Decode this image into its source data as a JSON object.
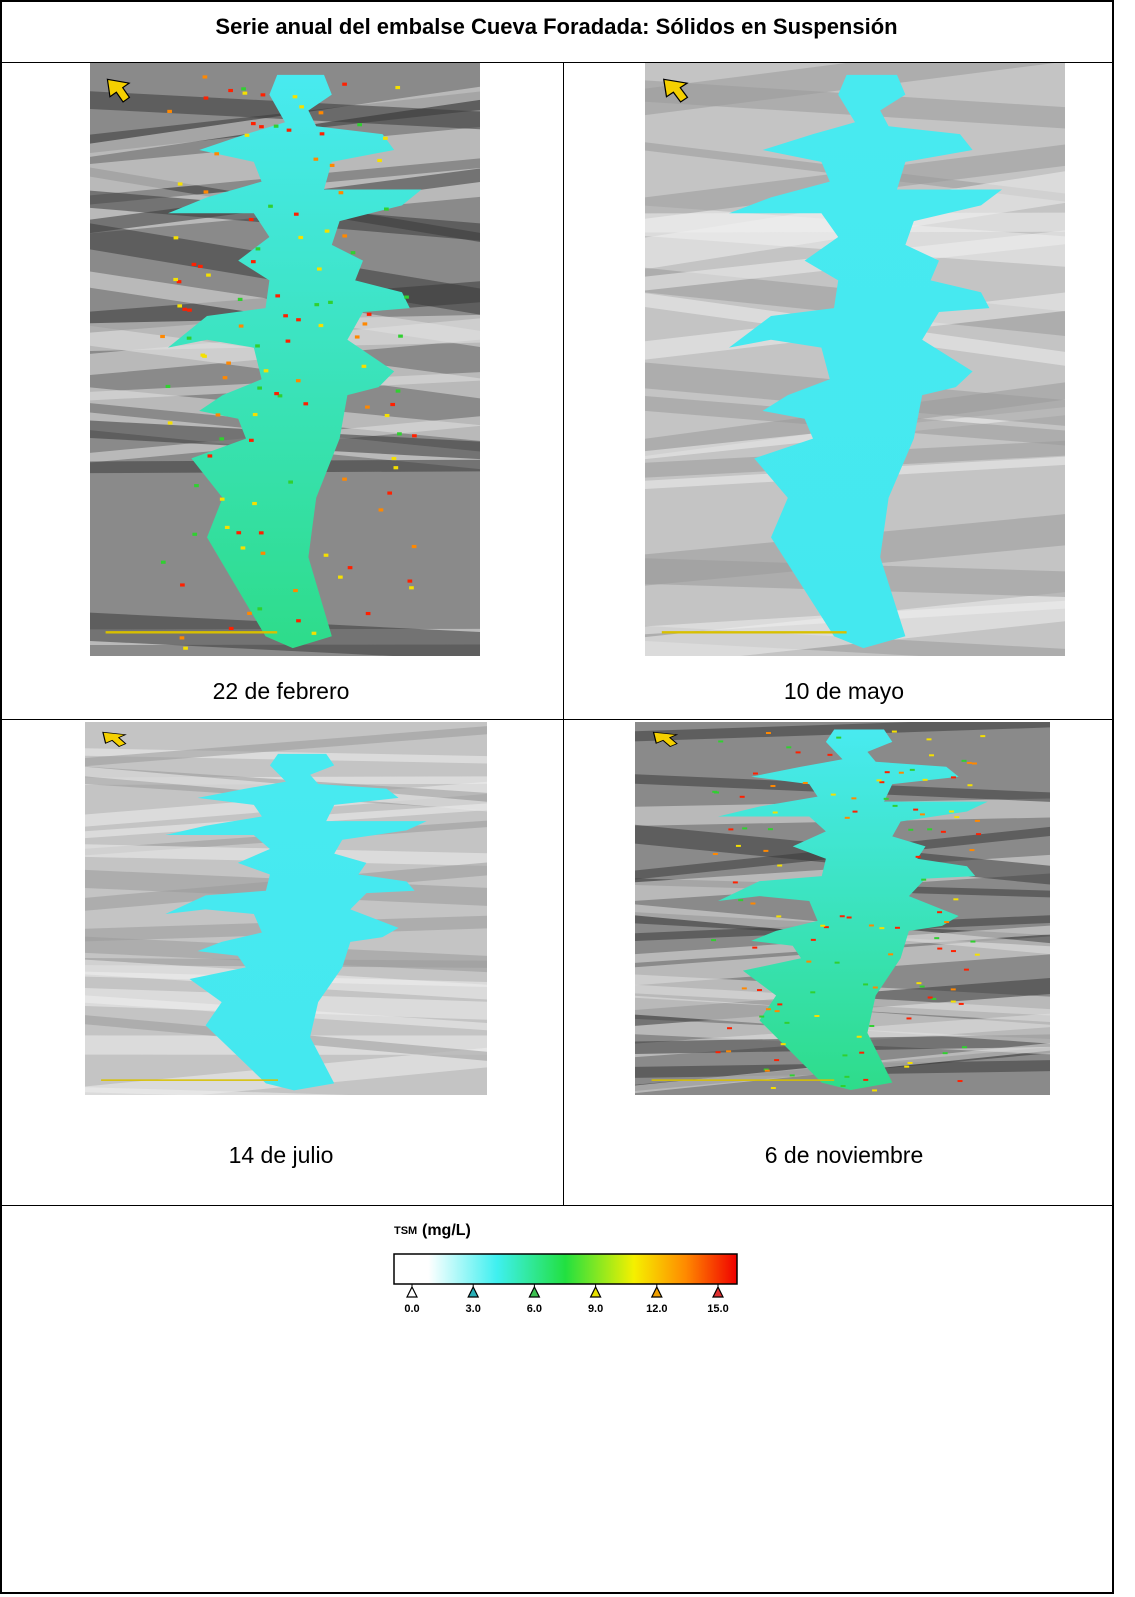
{
  "title": "Serie anual del embalse Cueva Foradada: Sólidos en Suspensión",
  "panels": [
    {
      "caption": "22 de febrero"
    },
    {
      "caption": "10 de mayo"
    },
    {
      "caption": "14 de julio"
    },
    {
      "caption": "6 de noviembre"
    }
  ],
  "legend": {
    "label": "TSM",
    "unit": "(mg/L)",
    "ticks": [
      "0.0",
      "3.0",
      "6.0",
      "9.0",
      "12.0",
      "15.0"
    ]
  }
}
